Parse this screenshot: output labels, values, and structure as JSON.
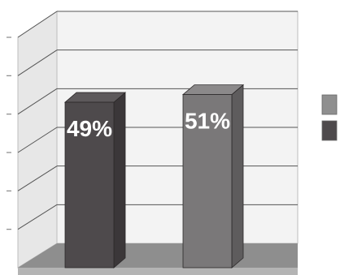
{
  "chart_data": {
    "type": "bar",
    "categories": [
      "",
      ""
    ],
    "values": [
      49,
      51
    ],
    "value_labels": [
      "49%",
      "51%"
    ],
    "ylim": [
      0,
      60
    ],
    "grid": true,
    "legend_placement": "right",
    "three_d": true,
    "colors": {
      "bar_front": [
        "#4e4a4c",
        "#7a7879"
      ],
      "bar_side": [
        "#3b3739",
        "#5e5c5d"
      ],
      "bar_top": [
        "#5d595b",
        "#8b898a"
      ],
      "wall": "#f3f3f3",
      "side_wall": "#e7e7e7",
      "floor": "#8e8e8e",
      "floor_front": "#b4b4b4",
      "grid_line": "#555555",
      "label_text": "#ffffff",
      "legend_swatches": [
        "#8f8f8f",
        "#4e4a4c"
      ]
    }
  }
}
